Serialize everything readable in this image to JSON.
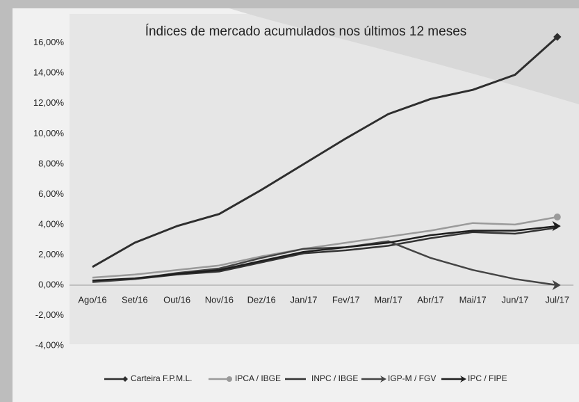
{
  "chart_data": {
    "type": "line",
    "title": "Índices de mercado acumulados nos últimos 12 meses",
    "categories": [
      "Ago/16",
      "Set/16",
      "Out/16",
      "Nov/16",
      "Dez/16",
      "Jan/17",
      "Fev/17",
      "Mar/17",
      "Abr/17",
      "Mai/17",
      "Jun/17",
      "Jul/17"
    ],
    "series": [
      {
        "name": "Carteira F.P.M.L.",
        "color": "#2e2e2e",
        "marker": "diamond",
        "values": [
          1.2,
          2.8,
          3.9,
          4.7,
          6.3,
          8.0,
          9.7,
          11.3,
          12.3,
          12.9,
          13.9,
          16.4
        ]
      },
      {
        "name": "IPCA / IBGE",
        "color": "#9a9a9a",
        "marker": "circle",
        "values": [
          0.5,
          0.7,
          1.0,
          1.3,
          1.9,
          2.4,
          2.8,
          3.2,
          3.6,
          4.1,
          4.0,
          4.5
        ]
      },
      {
        "name": "INPC / IBGE",
        "color": "#333333",
        "marker": "none",
        "values": [
          0.3,
          0.4,
          0.7,
          0.9,
          1.5,
          2.1,
          2.3,
          2.6,
          3.1,
          3.5,
          3.4,
          3.8
        ]
      },
      {
        "name": "IGP-M / FGV",
        "color": "#444444",
        "marker": "arrow",
        "values": [
          0.2,
          0.4,
          0.8,
          1.1,
          1.8,
          2.4,
          2.5,
          2.9,
          1.8,
          1.0,
          0.4,
          0.0
        ]
      },
      {
        "name": "IPC / FIPE",
        "color": "#1e1e1e",
        "marker": "arrow",
        "values": [
          0.3,
          0.45,
          0.75,
          1.0,
          1.6,
          2.2,
          2.5,
          2.8,
          3.3,
          3.6,
          3.6,
          3.9
        ]
      }
    ],
    "ylim": [
      -4,
      17
    ],
    "yticks": [
      {
        "value": -4,
        "label": "-4,00%"
      },
      {
        "value": -2,
        "label": "-2,00%"
      },
      {
        "value": 0,
        "label": "0,00%"
      },
      {
        "value": 2,
        "label": "2,00%"
      },
      {
        "value": 4,
        "label": "4,00%"
      },
      {
        "value": 6,
        "label": "6,00%"
      },
      {
        "value": 8,
        "label": "8,00%"
      },
      {
        "value": 10,
        "label": "10,00%"
      },
      {
        "value": 12,
        "label": "12,00%"
      },
      {
        "value": 14,
        "label": "14,00%"
      },
      {
        "value": 16,
        "label": "16,00%"
      }
    ],
    "legend": "bottom"
  }
}
